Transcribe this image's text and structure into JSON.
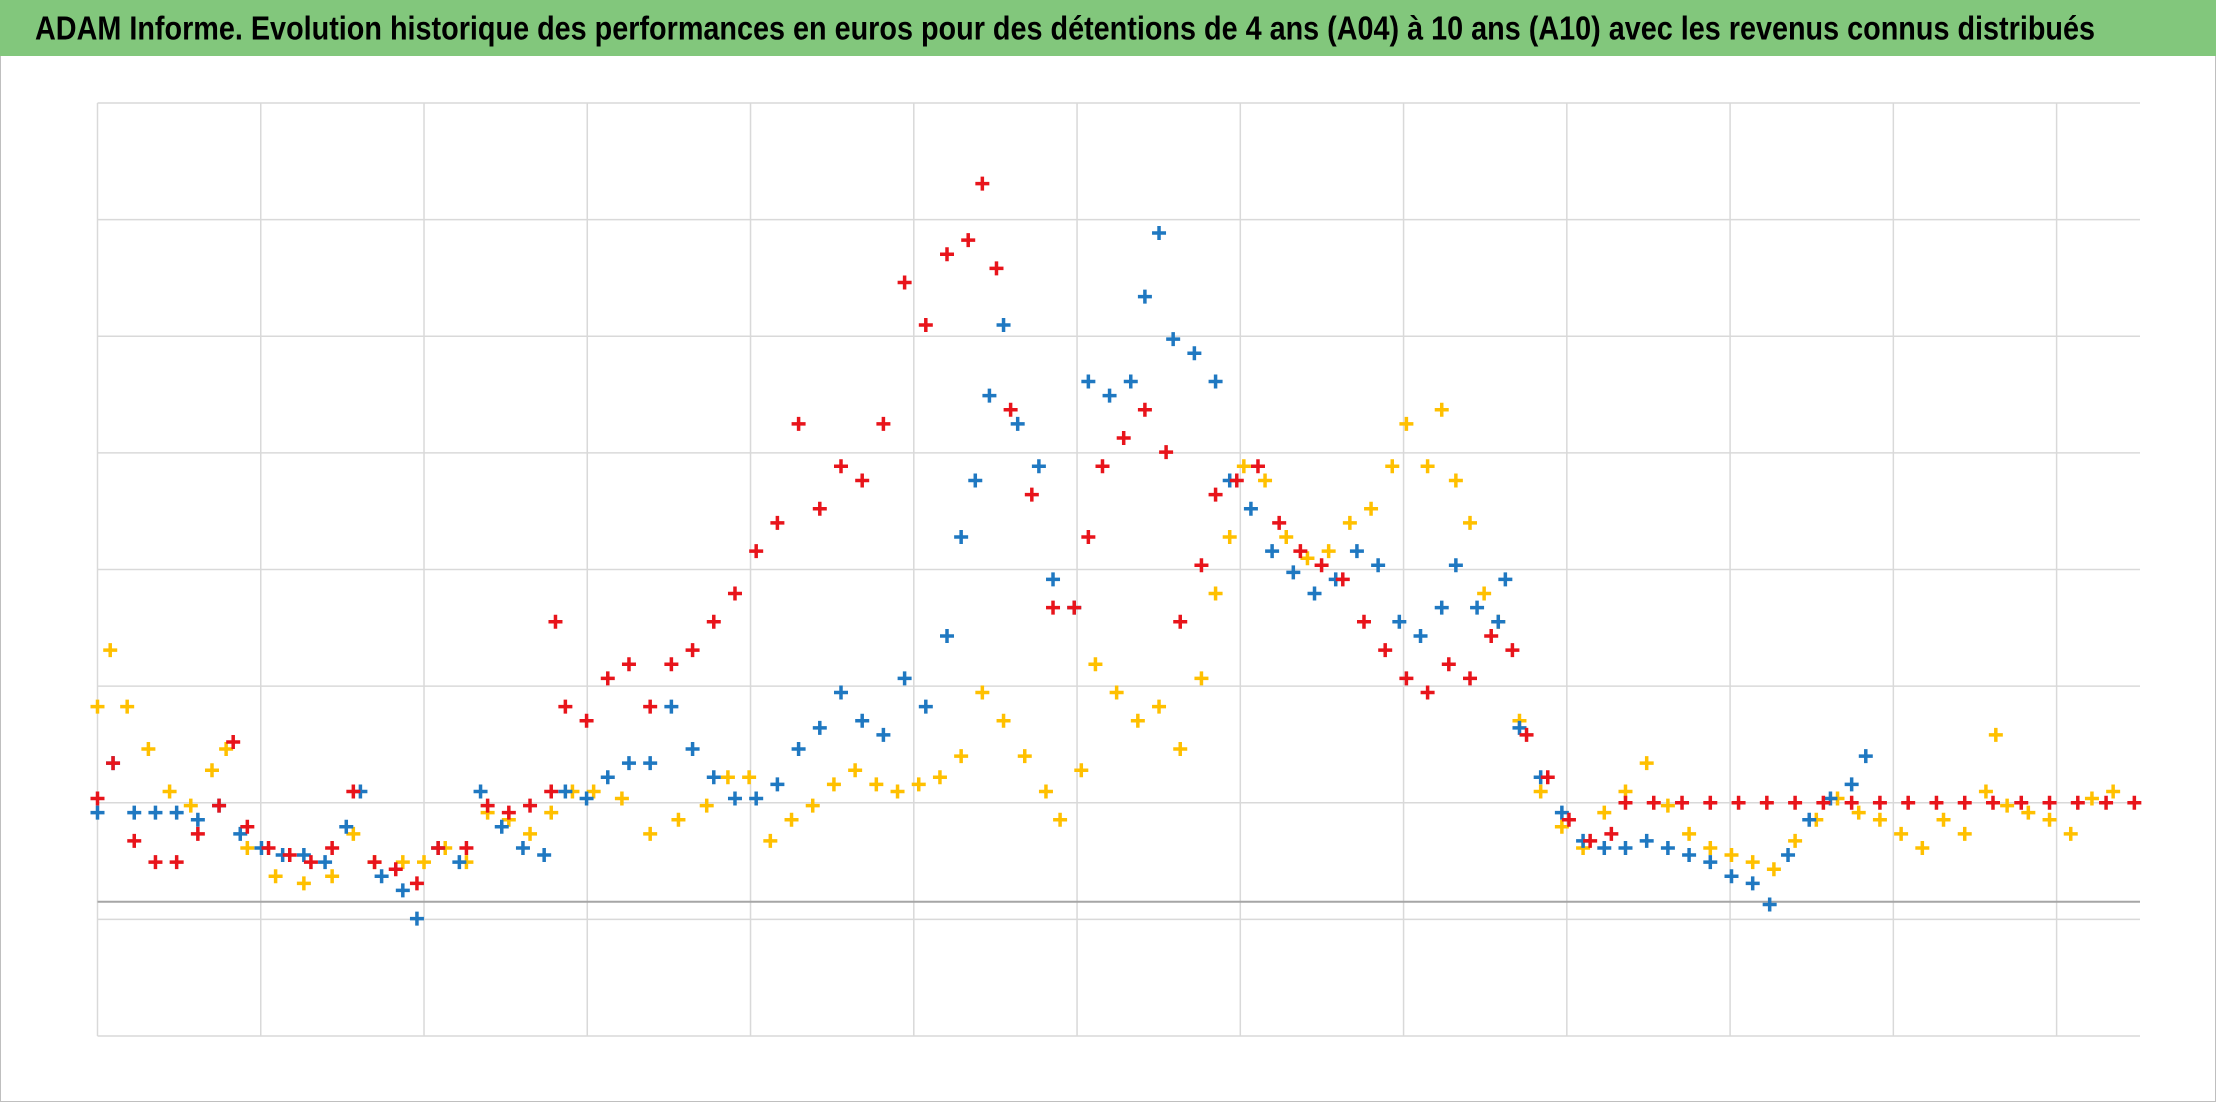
{
  "chart_data": {
    "type": "scatter",
    "title": "ADAM Informe. Evolution historique des performances en euros pour des détentions de 4 ans (A04) à 10 ans (A10) avec les revenus connus distribués",
    "xlim": [
      0,
      1445
    ],
    "xticks": [
      0,
      115.5,
      231,
      346.5,
      462,
      577.5,
      693,
      808.5,
      924,
      1039.5,
      1155,
      1270.5,
      1386
    ],
    "ylim": [
      0,
      660
    ],
    "yticks": [
      0,
      82.5,
      165,
      247.5,
      330,
      412.5,
      495,
      577.5,
      660
    ],
    "zero_line": 95,
    "grid": true,
    "series": [
      {
        "color": "#ffc000",
        "x": [
          0,
          9,
          21,
          36,
          51,
          66,
          81,
          91,
          106,
          126,
          146,
          166,
          181,
          196,
          216,
          231,
          246,
          261,
          276,
          291,
          306,
          321,
          336,
          351,
          371,
          391,
          411,
          431,
          446,
          461,
          476,
          491,
          506,
          521,
          536,
          551,
          566,
          581,
          596,
          611,
          626,
          641,
          656,
          671,
          681,
          696,
          706,
          721,
          736,
          751,
          766,
          781,
          791,
          801,
          811,
          826,
          841,
          856,
          871,
          886,
          901,
          916,
          926,
          941,
          951,
          961,
          971,
          981,
          991,
          1006,
          1021,
          1036,
          1051,
          1066,
          1081,
          1096,
          1111,
          1126,
          1141,
          1156,
          1171,
          1186,
          1201,
          1216,
          1231,
          1246,
          1261,
          1276,
          1291,
          1306,
          1321,
          1336,
          1343,
          1351,
          1366,
          1381,
          1396,
          1411,
          1426
        ],
        "values": [
          233,
          273,
          233,
          203,
          173,
          163,
          188,
          203,
          133,
          113,
          108,
          113,
          143,
          123,
          123,
          123,
          133,
          123,
          158,
          153,
          143,
          158,
          173,
          173,
          168,
          143,
          153,
          163,
          183,
          183,
          138,
          153,
          163,
          178,
          188,
          178,
          173,
          178,
          183,
          198,
          243,
          223,
          198,
          173,
          153,
          188,
          263,
          243,
          223,
          233,
          203,
          253,
          313,
          353,
          403,
          393,
          353,
          338,
          343,
          363,
          373,
          403,
          433,
          403,
          443,
          393,
          363,
          313,
          293,
          223,
          173,
          148,
          133,
          158,
          173,
          193,
          163,
          143,
          133,
          128,
          123,
          118,
          138,
          153,
          168,
          158,
          153,
          143,
          133,
          153,
          143,
          173,
          213,
          163,
          158,
          153,
          143,
          168,
          173
        ]
      },
      {
        "color": "#1f78c1",
        "x": [
          0,
          11,
          26,
          41,
          56,
          71,
          86,
          101,
          116,
          131,
          146,
          161,
          176,
          186,
          201,
          216,
          226,
          241,
          256,
          271,
          286,
          301,
          316,
          331,
          346,
          361,
          376,
          391,
          406,
          421,
          436,
          451,
          466,
          481,
          496,
          511,
          526,
          541,
          556,
          571,
          586,
          601,
          611,
          621,
          631,
          641,
          651,
          666,
          676,
          691,
          701,
          716,
          731,
          741,
          751,
          761,
          776,
          791,
          801,
          816,
          831,
          846,
          861,
          876,
          891,
          906,
          921,
          936,
          951,
          961,
          976,
          991,
          996,
          1006,
          1021,
          1036,
          1051,
          1066,
          1081,
          1096,
          1111,
          1126,
          1141,
          1156,
          1171,
          1183,
          1196,
          1211,
          1226,
          1241,
          1251
        ],
        "values": [
          158,
          193,
          158,
          158,
          158,
          153,
          163,
          143,
          133,
          128,
          128,
          123,
          148,
          173,
          113,
          103,
          83,
          133,
          123,
          173,
          148,
          133,
          128,
          173,
          168,
          183,
          193,
          193,
          233,
          203,
          183,
          168,
          168,
          178,
          203,
          218,
          243,
          223,
          213,
          253,
          233,
          283,
          353,
          393,
          453,
          503,
          433,
          403,
          323,
          303,
          463,
          453,
          463,
          523,
          568,
          493,
          483,
          463,
          393,
          373,
          343,
          328,
          313,
          323,
          343,
          333,
          293,
          283,
          303,
          333,
          303,
          293,
          323,
          218,
          183,
          158,
          138,
          133,
          133,
          138,
          133,
          128,
          123,
          113,
          108,
          93,
          128,
          153,
          168,
          178,
          198
        ]
      },
      {
        "color": "#e8141b",
        "x": [
          0,
          11,
          26,
          41,
          56,
          71,
          86,
          96,
          106,
          121,
          136,
          151,
          166,
          181,
          196,
          211,
          226,
          241,
          261,
          276,
          291,
          306,
          321,
          324,
          331,
          346,
          361,
          376,
          391,
          406,
          421,
          436,
          451,
          466,
          481,
          496,
          511,
          526,
          541,
          556,
          571,
          586,
          601,
          616,
          626,
          636,
          646,
          661,
          676,
          691,
          701,
          711,
          726,
          741,
          756,
          766,
          781,
          791,
          806,
          821,
          836,
          851,
          866,
          881,
          896,
          911,
          926,
          941,
          956,
          971,
          986,
          1001,
          1011,
          1026,
          1041,
          1056,
          1071,
          1081,
          1101,
          1121,
          1141,
          1161,
          1181,
          1201,
          1221,
          1241,
          1261,
          1281,
          1301,
          1321,
          1341,
          1361,
          1381,
          1401,
          1421,
          1441
        ],
        "values": [
          168,
          193,
          138,
          123,
          123,
          143,
          163,
          208,
          148,
          133,
          128,
          123,
          133,
          173,
          123,
          118,
          108,
          133,
          133,
          163,
          158,
          163,
          173,
          293,
          233,
          223,
          253,
          263,
          233,
          263,
          273,
          293,
          313,
          343,
          363,
          433,
          373,
          403,
          393,
          433,
          533,
          503,
          553,
          563,
          603,
          543,
          443,
          383,
          303,
          303,
          353,
          403,
          423,
          443,
          413,
          293,
          333,
          383,
          393,
          403,
          363,
          343,
          333,
          323,
          293,
          273,
          253,
          243,
          263,
          253,
          283,
          273,
          213,
          183,
          153,
          138,
          143,
          165,
          165,
          165,
          165,
          165,
          165,
          165,
          165,
          165,
          165,
          165,
          165,
          165,
          165,
          165,
          165,
          165,
          165,
          165
        ]
      }
    ]
  }
}
